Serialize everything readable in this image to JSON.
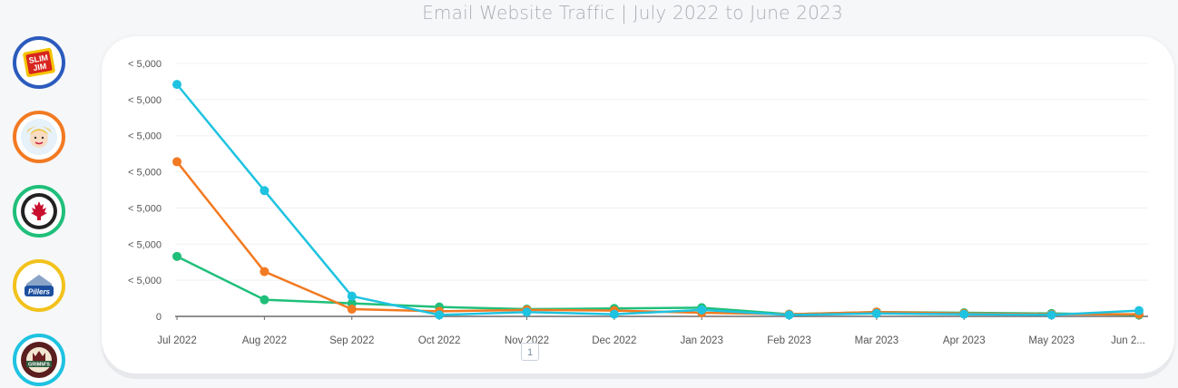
{
  "header": {
    "title": "Email Website Traffic | July 2022 to June 2023"
  },
  "brands": [
    {
      "name": "slim-jim-logo",
      "ring": "#2b5bbd",
      "text": "Slim Jim"
    },
    {
      "name": "girl-logo",
      "ring": "#f27a22",
      "text": ""
    },
    {
      "name": "maple-leaf-logo",
      "ring": "#1fbf7a",
      "text": ""
    },
    {
      "name": "pillers-logo",
      "ring": "#f2c21c",
      "text": "Pillers"
    },
    {
      "name": "grimms-logo",
      "ring": "#1ec3e0",
      "text": "GRIMM'S"
    }
  ],
  "pager": {
    "page": "1"
  },
  "chart_data": {
    "type": "line",
    "categories": [
      "Jul 2022",
      "Aug 2022",
      "Sep 2022",
      "Oct 2022",
      "Nov 2022",
      "Dec 2022",
      "Jan 2023",
      "Feb 2023",
      "Mar 2023",
      "Apr 2023",
      "May 2023",
      "Jun 2..."
    ],
    "yticks": [
      "0",
      "< 5,000",
      "< 5,000",
      "< 5,000",
      "< 5,000",
      "< 5,000",
      "< 5,000",
      "< 5,000"
    ],
    "ylim": [
      0,
      7000
    ],
    "grid": true,
    "series": [
      {
        "color": "#1ec3e0",
        "values": [
          6420,
          3480,
          560,
          40,
          120,
          60,
          180,
          40,
          80,
          60,
          40,
          160
        ]
      },
      {
        "color": "#f27a22",
        "values": [
          4280,
          1240,
          200,
          140,
          180,
          160,
          100,
          60,
          120,
          80,
          60,
          60
        ]
      },
      {
        "color": "#1fbf7a",
        "values": [
          1660,
          460,
          360,
          260,
          200,
          220,
          240,
          60,
          120,
          100,
          80,
          40
        ]
      }
    ]
  }
}
